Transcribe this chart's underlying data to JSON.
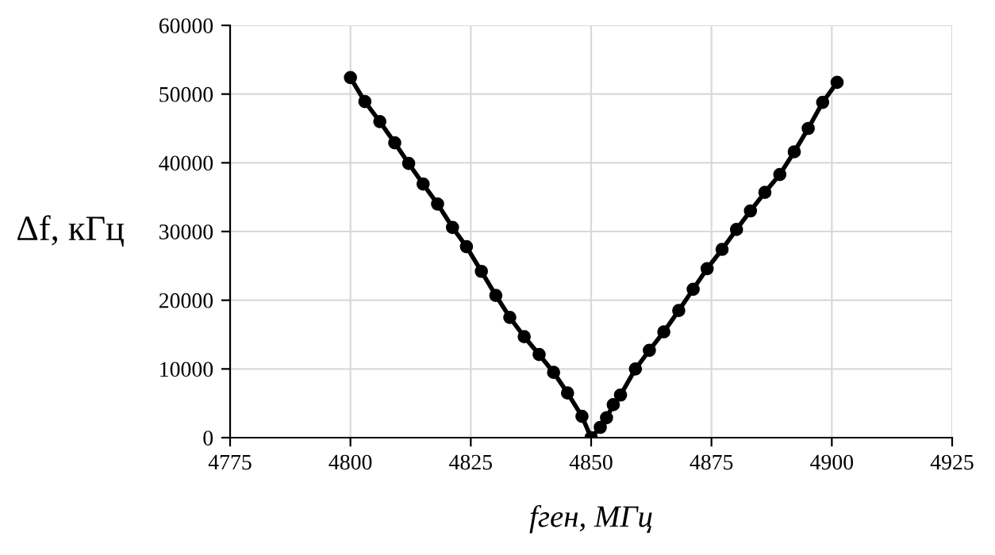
{
  "chart_data": {
    "type": "line",
    "xlabel": "fген, МГц",
    "ylabel": "Δf, кГц",
    "series": [
      {
        "color": "#000000",
        "x": [
          4800,
          4803,
          4806.1,
          4809.2,
          4812.1,
          4815.1,
          4818.1,
          4821.2,
          4824.1,
          4827.2,
          4830.2,
          4833.1,
          4836.1,
          4839.2,
          4842.2,
          4845.1,
          4848.1,
          4850,
          4851.9,
          4853.2,
          4854.6,
          4856.1,
          4859.2,
          4862.1,
          4865.1,
          4868.2,
          4871.2,
          4874.1,
          4877.2,
          4880.2,
          4883.1,
          4886.1,
          4889.2,
          4892.2,
          4895.1,
          4898.1,
          4901.1
        ],
        "values": [
          52400,
          48900,
          46000,
          42900,
          39900,
          36900,
          34000,
          30600,
          27800,
          24200,
          20700,
          17500,
          14700,
          12100,
          9500,
          6500,
          3100,
          0,
          1500,
          2900,
          4800,
          6200,
          10000,
          12700,
          15400,
          18500,
          21600,
          24600,
          27400,
          30300,
          33000,
          35700,
          38300,
          41600,
          45000,
          48800,
          51700
        ]
      }
    ],
    "xlim": [
      4775,
      4925
    ],
    "xticks": [
      4775,
      4800,
      4825,
      4850,
      4875,
      4900,
      4925
    ],
    "ylim": [
      0,
      60000
    ],
    "yticks": [
      0,
      10000,
      20000,
      30000,
      40000,
      50000,
      60000
    ],
    "grid": true,
    "marker": "circle",
    "line_style": "solid"
  }
}
